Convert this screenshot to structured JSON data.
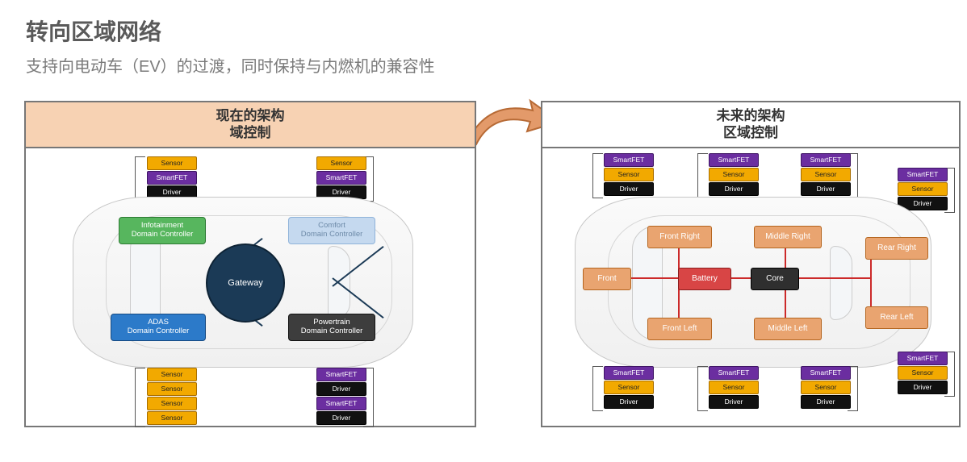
{
  "title": "转向区域网络",
  "subtitle": "支持向电动车（EV）的过渡，同时保持与内燃机的兼容性",
  "arrow_color": "#e39a6a",
  "arrow_border": "#b76a35",
  "panel_left": {
    "title_l1": "现在的架构",
    "title_l2": "域控制",
    "header_bg": "#f7d2b3",
    "gateway": "Gateway",
    "domains": {
      "infotainment": "Infotainment\nDomain Controller",
      "adas": "ADAS\nDomain Controller",
      "comfort": "Comfort\nDomain Controller",
      "powertrain": "Powertrain\nDomain Controller"
    },
    "labels": {
      "sensor": "Sensor",
      "smartfet": "SmartFET",
      "driver": "Driver"
    },
    "stacks": {
      "top_left": [
        "sensor",
        "smartfet",
        "driver"
      ],
      "top_right": [
        "sensor",
        "smartfet",
        "driver"
      ],
      "bot_left": [
        "sensor",
        "sensor",
        "sensor",
        "sensor"
      ],
      "bot_right": [
        "smartfet",
        "driver",
        "smartfet",
        "driver"
      ]
    },
    "colors": {
      "infotainment": "#57b65e",
      "adas": "#2c7ac9",
      "comfort": "#c5d9ef",
      "powertrain": "#3d3d3d",
      "gateway": "#1b3a56",
      "line": "#1b3a56"
    }
  },
  "panel_right": {
    "title_l1": "未来的架构",
    "title_l2": "区域控制",
    "header_bg": "#ffffff",
    "zones": {
      "front": "Front",
      "front_right": "Front Right",
      "front_left": "Front Left",
      "middle_right": "Middle Right",
      "middle_left": "Middle Left",
      "rear_right": "Rear Right",
      "rear_left": "Rear Left",
      "battery": "Battery",
      "core": "Core"
    },
    "labels": {
      "sensor": "Sensor",
      "smartfet": "SmartFET",
      "driver": "Driver"
    },
    "stacks": {
      "tl": [
        "smartfet",
        "sensor",
        "driver"
      ],
      "tm": [
        "smartfet",
        "sensor",
        "driver"
      ],
      "tr": [
        "smartfet",
        "sensor",
        "driver"
      ],
      "trr": [
        "smartfet",
        "sensor",
        "driver"
      ],
      "bl": [
        "smartfet",
        "sensor",
        "driver"
      ],
      "bm": [
        "smartfet",
        "sensor",
        "driver"
      ],
      "br": [
        "smartfet",
        "sensor",
        "driver"
      ],
      "brr": [
        "smartfet",
        "sensor",
        "driver"
      ]
    },
    "colors": {
      "zone": "#e9a470",
      "zone_border": "#b4651f",
      "battery": "#d84545",
      "core": "#2f2f2f",
      "wire": "#cc2a2a"
    }
  }
}
